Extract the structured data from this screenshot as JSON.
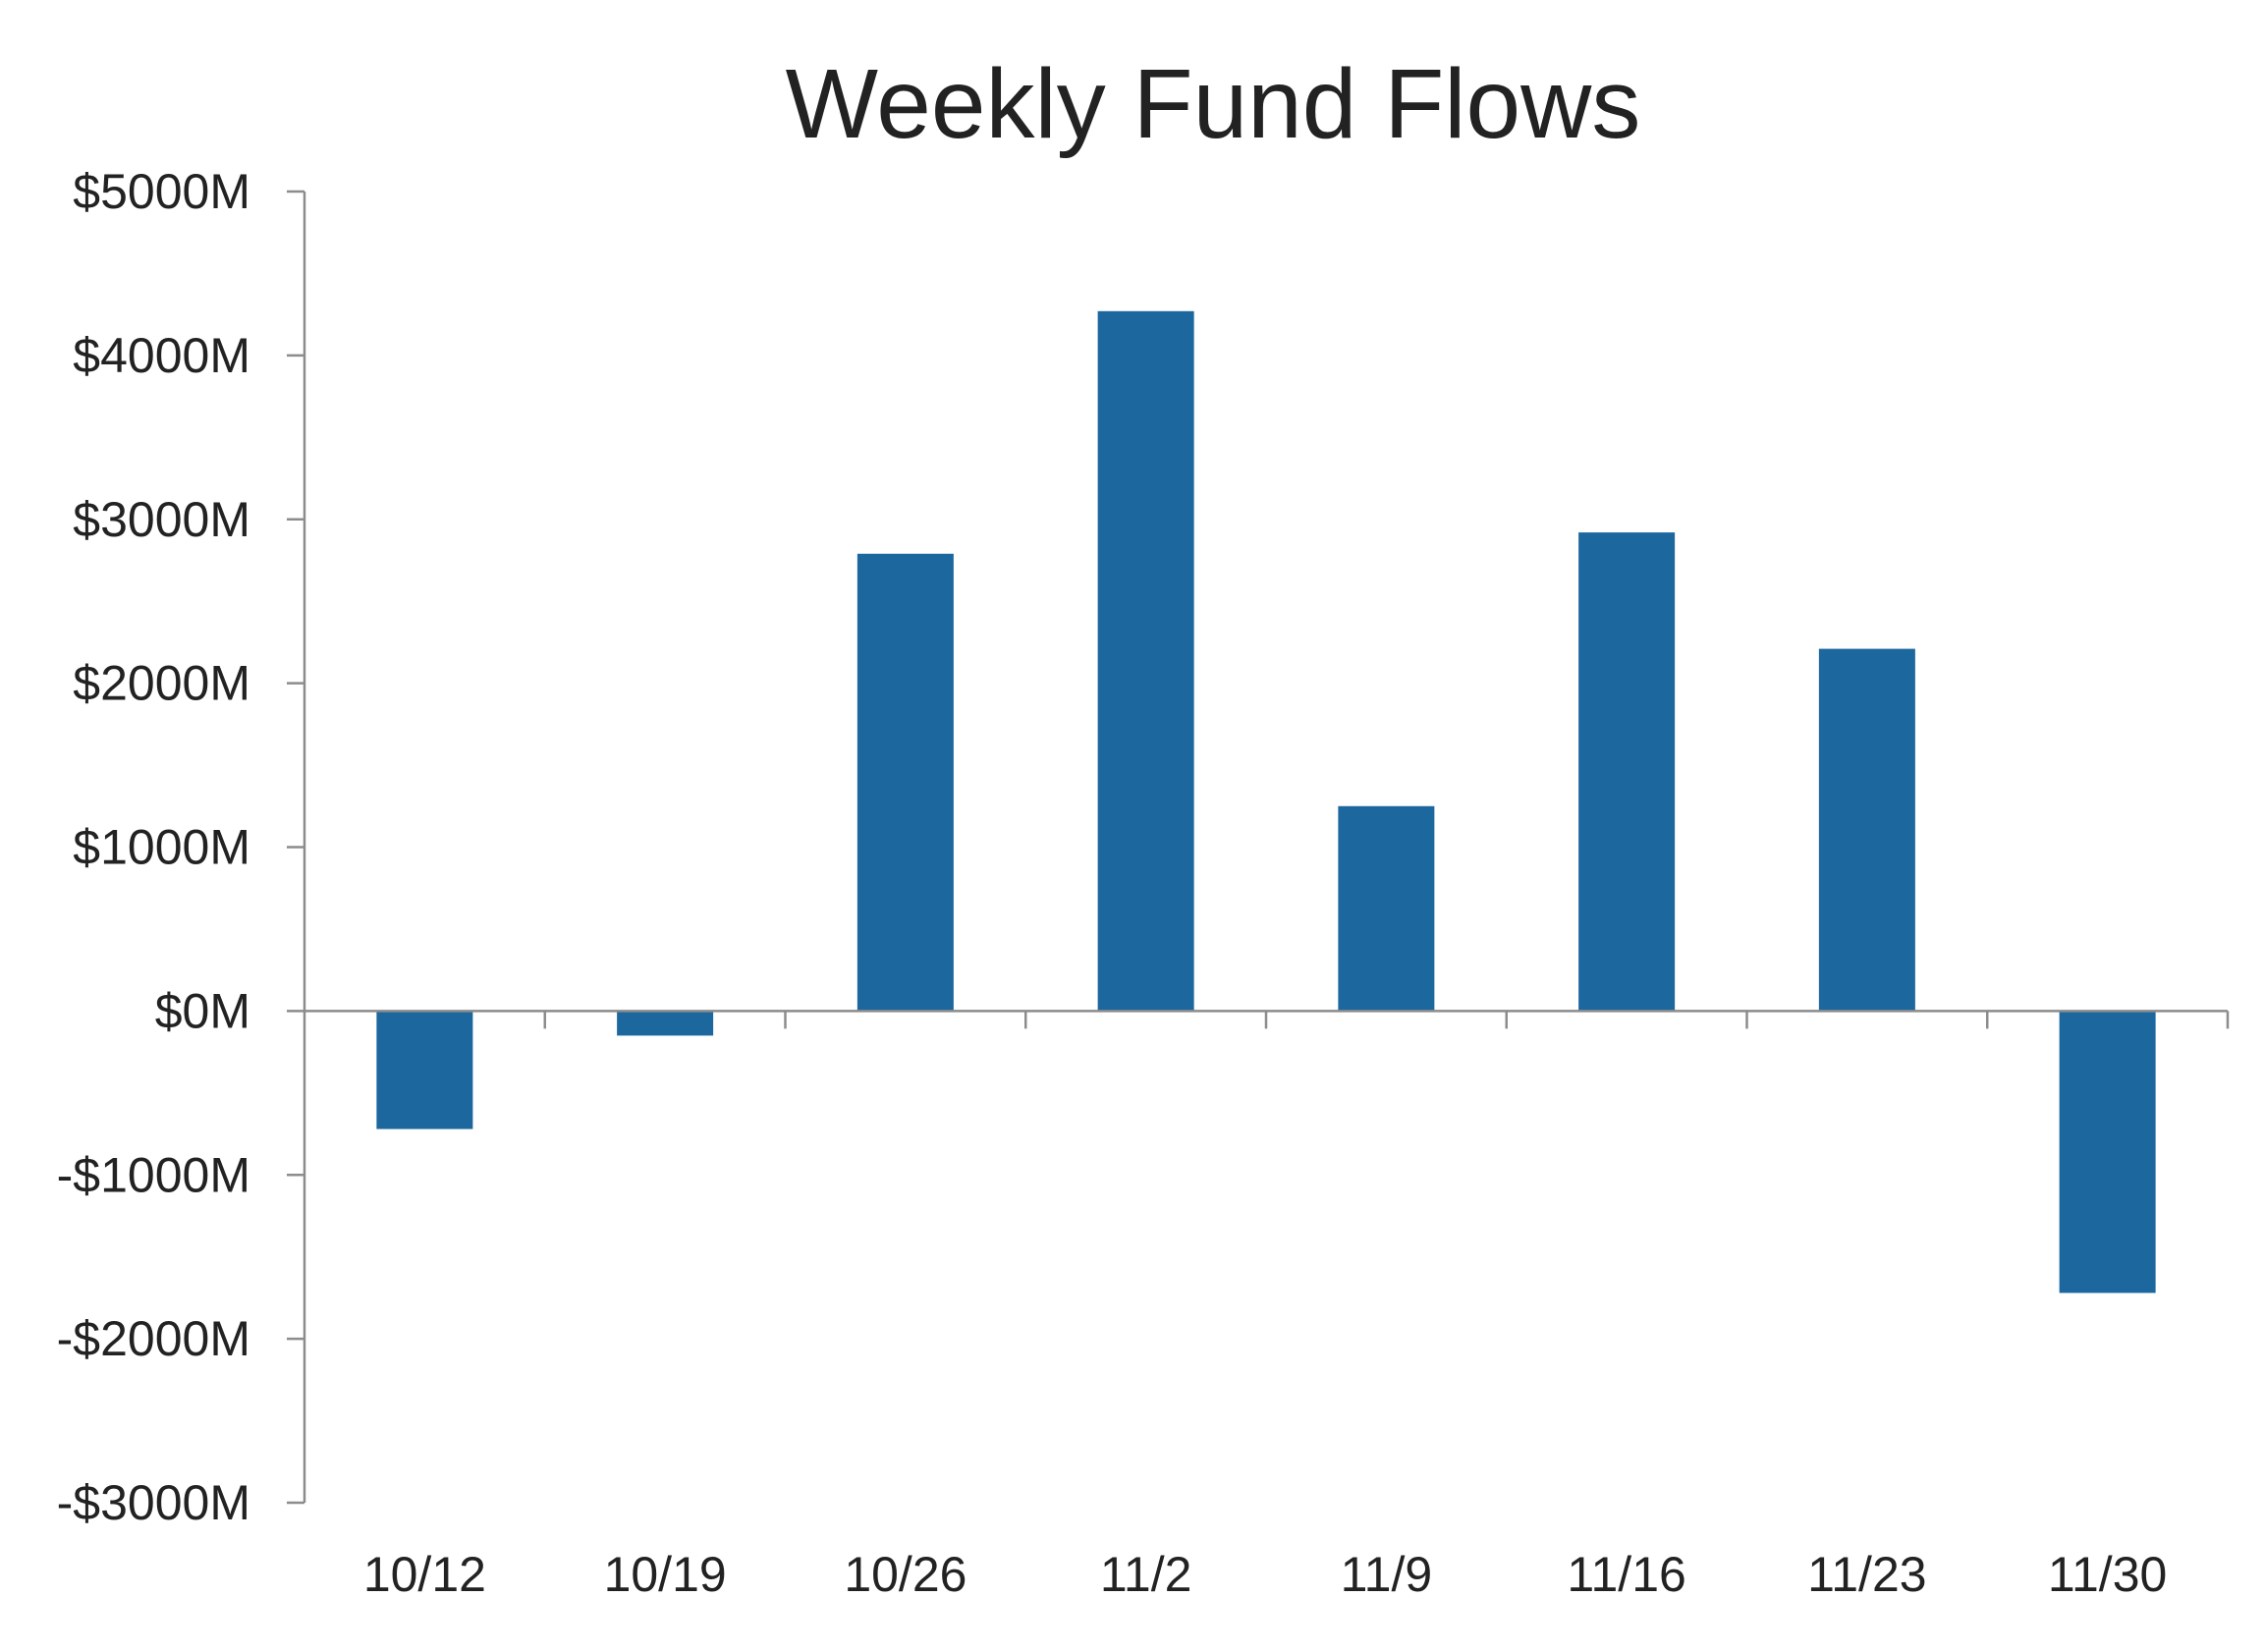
{
  "chart_data": {
    "type": "bar",
    "title": "Weekly Fund Flows",
    "xlabel": "",
    "ylabel": "",
    "categories": [
      "10/12",
      "10/19",
      "10/26",
      "11/2",
      "11/9",
      "11/16",
      "11/23",
      "11/30"
    ],
    "values": [
      -720,
      -150,
      2790,
      4270,
      1250,
      2920,
      2210,
      -1720
    ],
    "ylim": [
      -3000,
      5000
    ],
    "y_ticks": [
      5000,
      4000,
      3000,
      2000,
      1000,
      0,
      -1000,
      -2000,
      -3000
    ],
    "y_tick_labels": [
      "$5000M",
      "$4000M",
      "$3000M",
      "$2000M",
      "$1000M",
      "$0M",
      "-$1000M",
      "-$2000M",
      "-$3000M"
    ],
    "grid": false,
    "legend": "none",
    "colors": {
      "bar": "#1B679E",
      "axis": "#8C8C8C",
      "text": "#222222"
    }
  }
}
